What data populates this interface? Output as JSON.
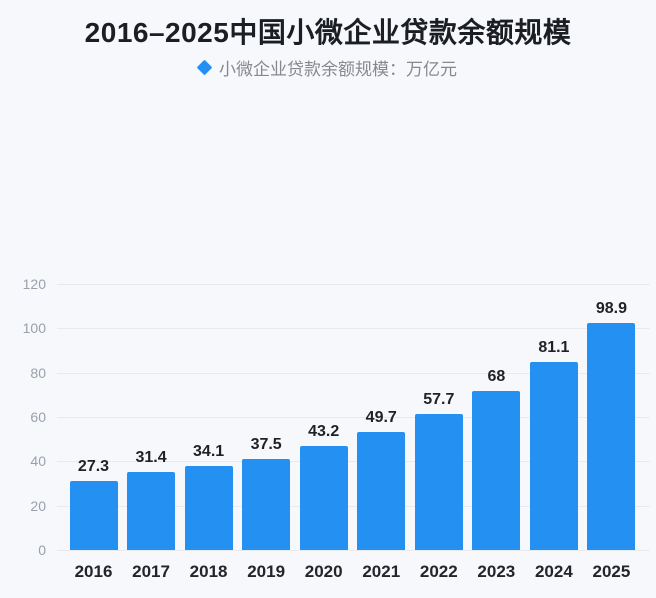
{
  "page": {
    "background_color": "#f7f8fb"
  },
  "header": {
    "title": "2016–2025中国小微企业贷款余额规模"
  },
  "legend": {
    "marker_icon": "diamond-icon",
    "marker_color": "#2490f2",
    "label": "小微企业贷款余额规模：万亿元"
  },
  "chart_data": {
    "type": "bar",
    "title": "2016–2025中国小微企业贷款余额规模",
    "series_name": "小微企业贷款余额规模",
    "unit": "万亿元",
    "categories": [
      "2016",
      "2017",
      "2018",
      "2019",
      "2020",
      "2021",
      "2022",
      "2023",
      "2024",
      "2025"
    ],
    "values": [
      27.3,
      31.4,
      34.1,
      37.5,
      43.2,
      49.7,
      57.7,
      68,
      81.1,
      98.9
    ],
    "ylim": [
      0,
      120
    ],
    "yticks": [
      0,
      20,
      40,
      60,
      80,
      100,
      120
    ],
    "grid": true,
    "legend_position": "top",
    "bar_color": "#2490f2",
    "gridline_color": "#e8eaef",
    "axis_tick_color": "#9aa1ac",
    "value_label_color": "#1e2125",
    "category_label_color": "#22252a"
  }
}
